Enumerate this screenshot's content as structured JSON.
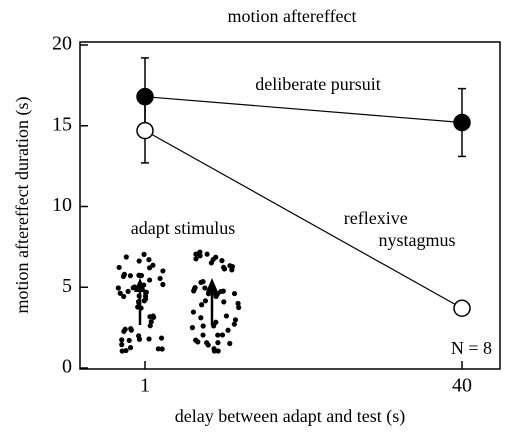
{
  "chart_data": {
    "type": "line",
    "title": "motion aftereffect",
    "x_label": "delay between adapt and test (s)",
    "y_label": "motion aftereffect duration (s)",
    "categories": [
      "1",
      "40"
    ],
    "series": [
      {
        "name": "deliberate pursuit",
        "color": "#000000",
        "marker": "filled",
        "values": [
          16.8,
          15.2
        ],
        "errors": [
          2.4,
          2.1
        ]
      },
      {
        "name": "reflexive nystagmus",
        "color": "#000000",
        "marker": "open",
        "values": [
          14.7,
          3.7
        ],
        "errors": [
          2.0,
          null
        ]
      }
    ],
    "ylim": [
      0,
      20
    ],
    "yticks": [
      0,
      5,
      10,
      15,
      20
    ],
    "annotations": [
      "adapt stimulus",
      "N = 8"
    ]
  }
}
